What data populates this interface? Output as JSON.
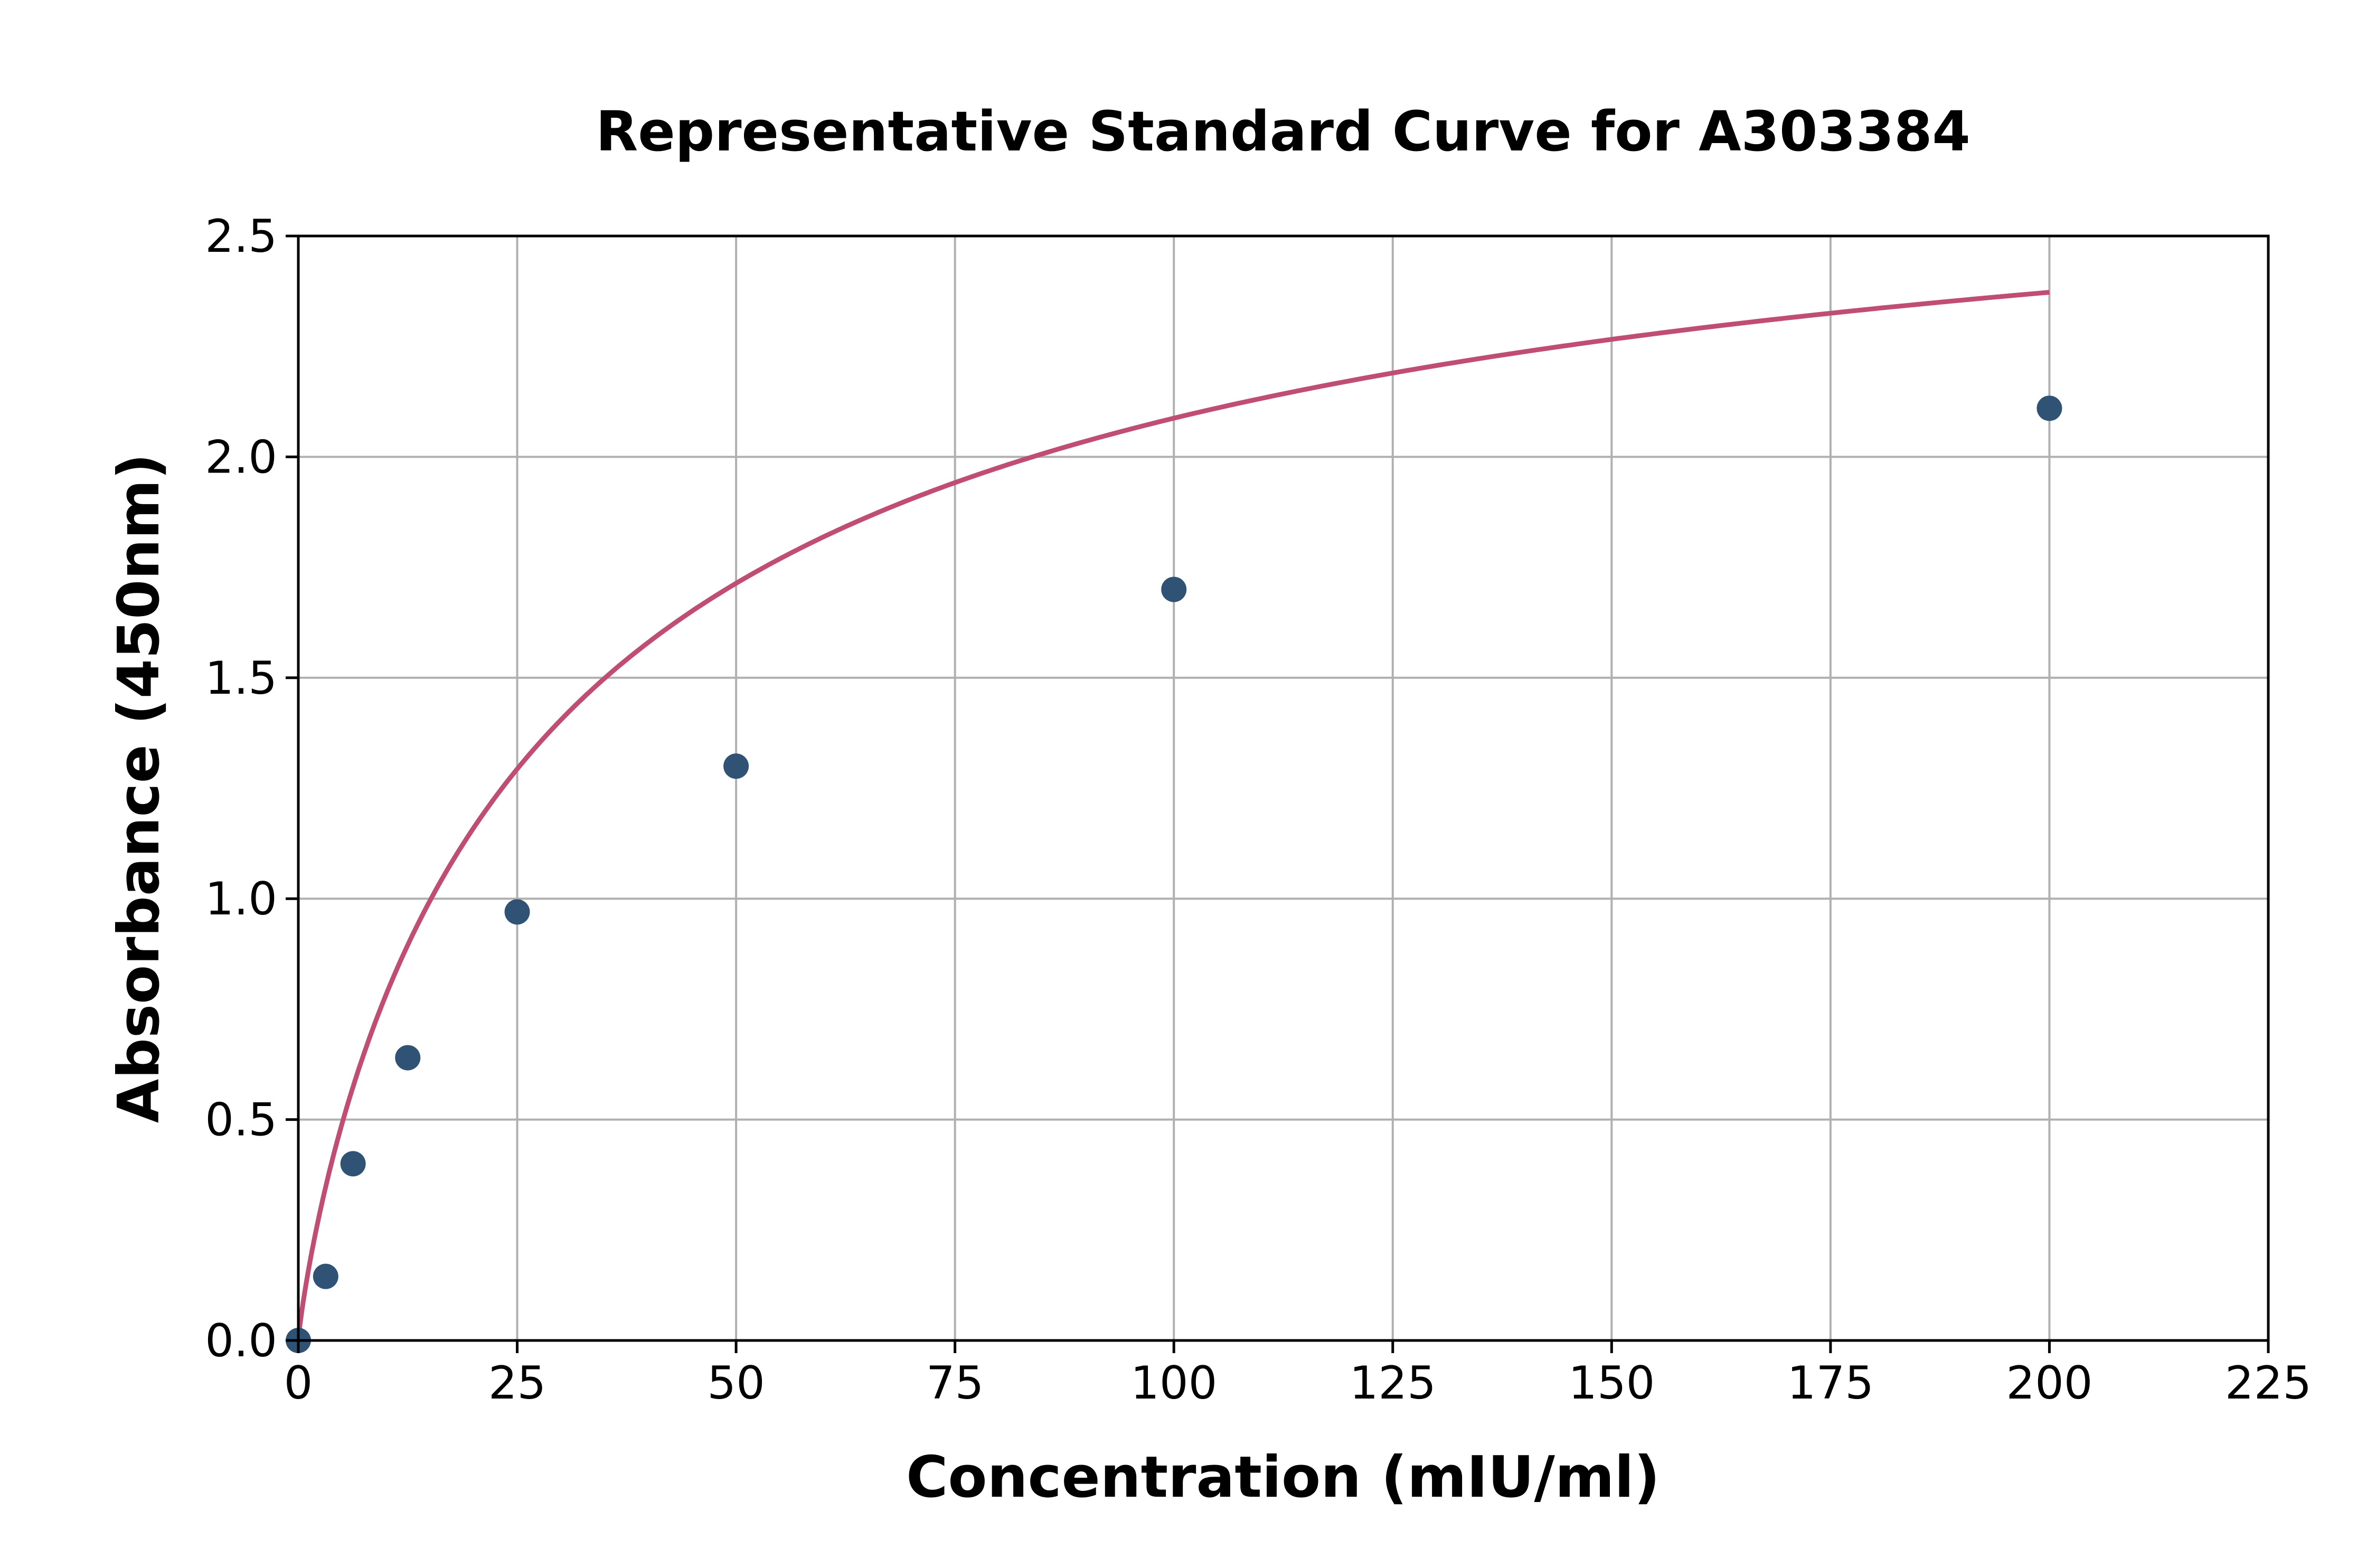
{
  "chart_data": {
    "type": "scatter",
    "title": "Representative Standard Curve for A303384",
    "xlabel": "Concentration (mIU/ml)",
    "ylabel": "Absorbance (450nm)",
    "xlim": [
      0,
      225
    ],
    "ylim": [
      0,
      2.5
    ],
    "xticks": [
      "0",
      "25",
      "50",
      "75",
      "100",
      "125",
      "150",
      "175",
      "200",
      "225"
    ],
    "yticks": [
      "0.0",
      "0.5",
      "1.0",
      "1.5",
      "2.0",
      "2.5"
    ],
    "grid": true,
    "points": [
      {
        "x": 0,
        "y": 0.0
      },
      {
        "x": 3.125,
        "y": 0.145
      },
      {
        "x": 6.25,
        "y": 0.4
      },
      {
        "x": 12.5,
        "y": 0.64
      },
      {
        "x": 25,
        "y": 0.97
      },
      {
        "x": 50,
        "y": 1.3
      },
      {
        "x": 100,
        "y": 1.7
      },
      {
        "x": 200,
        "y": 2.11
      }
    ],
    "fit_curve": "fitted standard curve",
    "colors": {
      "points": "#2f5275",
      "curve": "#c04d73",
      "grid": "#b0b0b0"
    }
  }
}
